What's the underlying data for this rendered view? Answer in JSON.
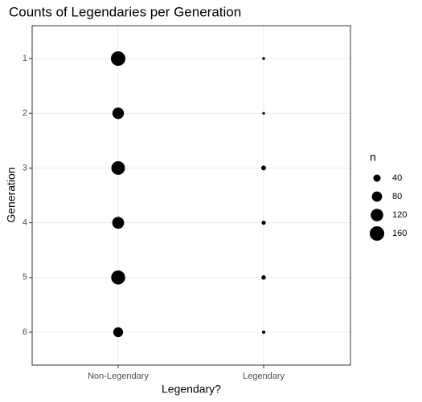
{
  "chart_data": {
    "type": "count",
    "title": "Counts of Legendaries per Generation",
    "x_label": "Legendary?",
    "y_label": "Generation",
    "x_categories": [
      "Non-Legendary",
      "Legendary"
    ],
    "y_categories": [
      "1",
      "2",
      "3",
      "4",
      "5",
      "6"
    ],
    "counts": [
      [
        160,
        6
      ],
      [
        101,
        5
      ],
      [
        142,
        18
      ],
      [
        108,
        13
      ],
      [
        150,
        15
      ],
      [
        74,
        8
      ]
    ],
    "color": "#000000",
    "grid": true,
    "size_legend": {
      "title": "n",
      "values": [
        40,
        80,
        120,
        160
      ]
    }
  }
}
